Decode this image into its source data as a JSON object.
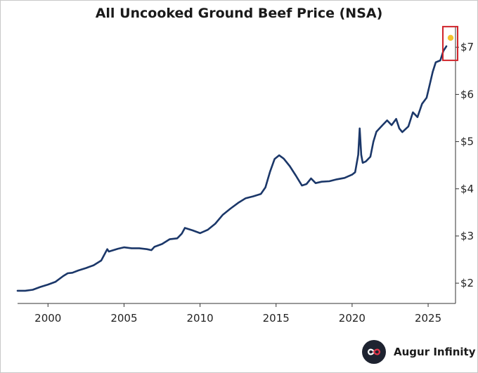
{
  "chart_data": {
    "type": "line",
    "title": "All Uncooked Ground Beef Price (NSA)",
    "xlabel": "",
    "ylabel": "",
    "xlim": [
      1998.0,
      2026.8
    ],
    "ylim": [
      1.57,
      7.45
    ],
    "x_ticks": [
      2000,
      2005,
      2010,
      2015,
      2020,
      2025
    ],
    "x_tick_labels": [
      "2000",
      "2005",
      "2010",
      "2015",
      "2020",
      "2025"
    ],
    "y_ticks": [
      2,
      3,
      4,
      5,
      6,
      7
    ],
    "y_tick_labels": [
      "$2",
      "$3",
      "$4",
      "$5",
      "$6",
      "$7"
    ],
    "y_axis_side": "right",
    "grid": false,
    "series": [
      {
        "name": "",
        "color": "#1b3769",
        "x": [
          1998.0,
          1998.5,
          1999.0,
          1999.5,
          2000.0,
          2000.5,
          2001.0,
          2001.3,
          2001.6,
          2002.0,
          2002.5,
          2003.0,
          2003.5,
          2003.9,
          2004.0,
          2004.3,
          2004.6,
          2005.0,
          2005.5,
          2006.0,
          2006.5,
          2006.8,
          2007.0,
          2007.5,
          2008.0,
          2008.5,
          2008.8,
          2009.0,
          2009.5,
          2010.0,
          2010.5,
          2011.0,
          2011.5,
          2012.0,
          2012.5,
          2013.0,
          2013.5,
          2014.0,
          2014.3,
          2014.6,
          2014.9,
          2015.2,
          2015.5,
          2015.9,
          2016.3,
          2016.7,
          2017.0,
          2017.3,
          2017.6,
          2018.0,
          2018.5,
          2019.0,
          2019.5,
          2020.0,
          2020.2,
          2020.4,
          2020.5,
          2020.6,
          2020.7,
          2020.9,
          2021.2,
          2021.4,
          2021.6,
          2022.0,
          2022.3,
          2022.6,
          2022.9,
          2023.1,
          2023.3,
          2023.7,
          2024.0,
          2024.3,
          2024.6,
          2024.9,
          2025.1,
          2025.3,
          2025.5,
          2025.8,
          2026.0,
          2026.2
        ],
        "y": [
          1.84,
          1.84,
          1.86,
          1.92,
          1.97,
          2.03,
          2.15,
          2.21,
          2.22,
          2.27,
          2.32,
          2.38,
          2.48,
          2.72,
          2.67,
          2.7,
          2.73,
          2.76,
          2.74,
          2.74,
          2.72,
          2.7,
          2.77,
          2.83,
          2.93,
          2.95,
          3.05,
          3.17,
          3.12,
          3.06,
          3.13,
          3.26,
          3.45,
          3.58,
          3.7,
          3.8,
          3.84,
          3.89,
          4.03,
          4.36,
          4.63,
          4.71,
          4.64,
          4.48,
          4.28,
          4.07,
          4.1,
          4.22,
          4.12,
          4.15,
          4.16,
          4.2,
          4.23,
          4.3,
          4.35,
          4.72,
          5.28,
          4.72,
          4.55,
          4.58,
          4.68,
          5.0,
          5.21,
          5.35,
          5.45,
          5.35,
          5.48,
          5.28,
          5.2,
          5.32,
          5.62,
          5.52,
          5.8,
          5.93,
          6.2,
          6.48,
          6.68,
          6.72,
          6.92,
          7.02
        ]
      }
    ],
    "annotations": [
      {
        "kind": "highlight-box",
        "around": "latest value",
        "color": "#d0232a"
      },
      {
        "kind": "marker",
        "at": "latest value",
        "color": "#f2c12e"
      }
    ]
  },
  "branding": {
    "name": "Augur Infinity",
    "logo_icon": "infinity-icon"
  }
}
